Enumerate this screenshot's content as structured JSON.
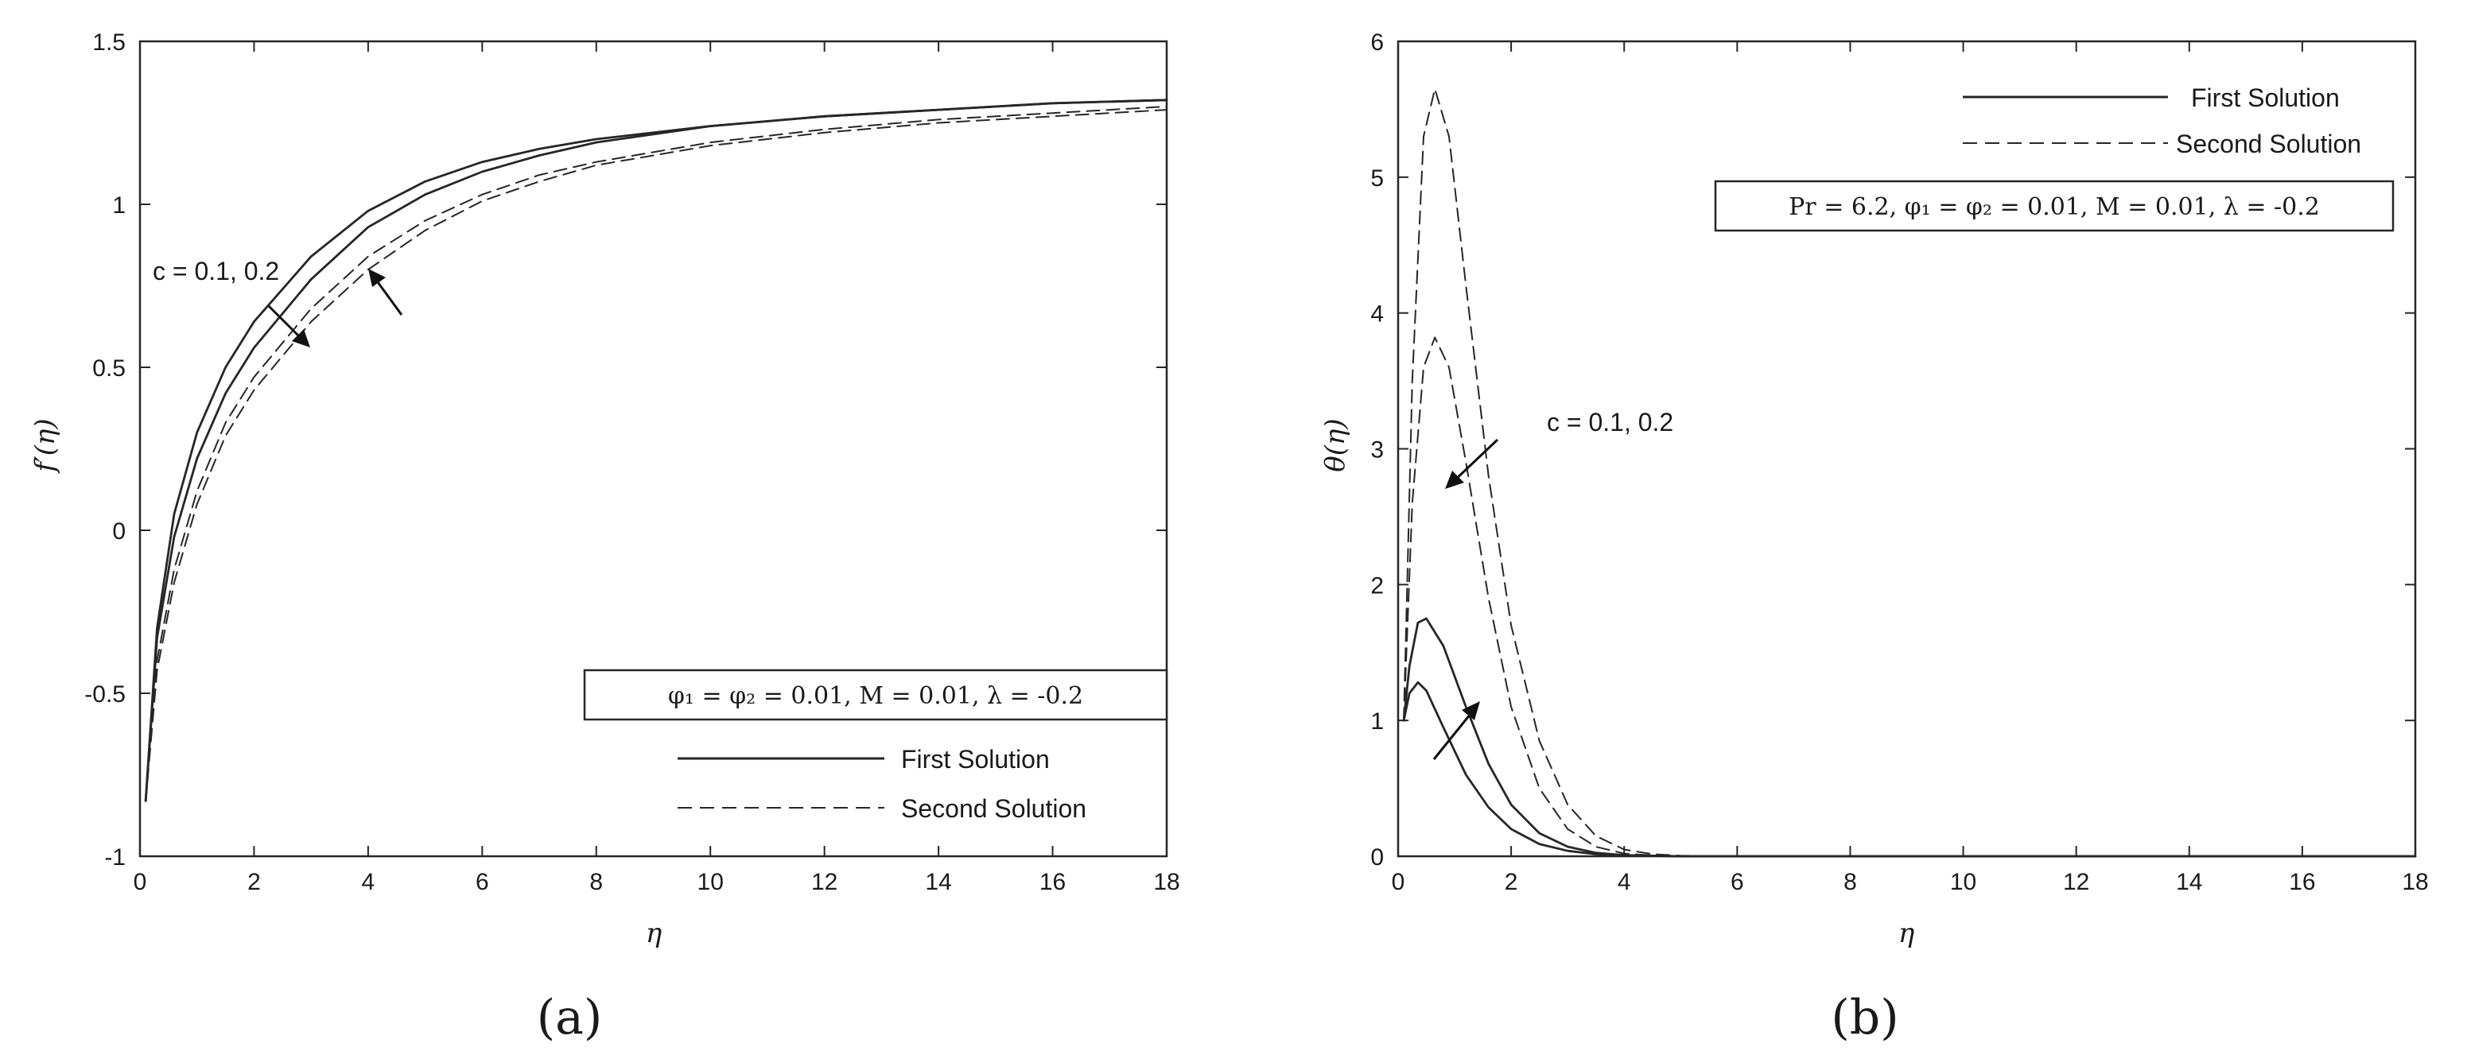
{
  "chart_data": [
    {
      "type": "line",
      "panel_label": "(a)",
      "xlabel": "η",
      "ylabel": "f′(η)",
      "xlim": [
        0,
        18
      ],
      "ylim": [
        -1,
        1.5
      ],
      "xticks": [
        0,
        2,
        4,
        6,
        8,
        10,
        12,
        14,
        16,
        18
      ],
      "yticks": [
        -1,
        -0.5,
        0,
        0.5,
        1,
        1.5
      ],
      "xtick_labels": [
        "0",
        "2",
        "4",
        "6",
        "8",
        "10",
        "12",
        "14",
        "16",
        "18"
      ],
      "ytick_labels": [
        "-1",
        "-0.5",
        "0",
        "0.5",
        "1",
        "1.5"
      ],
      "grid": false,
      "legend": {
        "position": "bottom-right",
        "entries": [
          {
            "label": "First Solution",
            "style": "solid"
          },
          {
            "label": "Second Solution",
            "style": "dashed"
          }
        ]
      },
      "parameter_box": "φ₁ = φ₂ = 0.01, M = 0.01, λ = -0.2",
      "annotation": "c = 0.1, 0.2",
      "series": [
        {
          "style": "solid",
          "c": 0.1,
          "x": [
            0.1,
            0.3,
            0.6,
            1,
            1.5,
            2,
            3,
            4,
            5,
            6,
            7,
            8,
            10,
            12,
            14,
            16,
            18
          ],
          "y": [
            -0.83,
            -0.3,
            0.05,
            0.3,
            0.5,
            0.64,
            0.84,
            0.98,
            1.07,
            1.13,
            1.17,
            1.2,
            1.24,
            1.27,
            1.29,
            1.31,
            1.32
          ]
        },
        {
          "style": "solid",
          "c": 0.2,
          "x": [
            0.1,
            0.3,
            0.6,
            1,
            1.5,
            2,
            3,
            4,
            5,
            6,
            7,
            8,
            10,
            12,
            14,
            16,
            18
          ],
          "y": [
            -0.83,
            -0.33,
            -0.02,
            0.22,
            0.42,
            0.56,
            0.77,
            0.93,
            1.03,
            1.1,
            1.15,
            1.19,
            1.24,
            1.27,
            1.29,
            1.31,
            1.32
          ]
        },
        {
          "style": "dashed",
          "c": 0.1,
          "x": [
            0.1,
            0.3,
            0.6,
            1,
            1.5,
            2,
            3,
            4,
            5,
            6,
            7,
            8,
            10,
            12,
            14,
            16,
            18
          ],
          "y": [
            -0.83,
            -0.4,
            -0.12,
            0.12,
            0.33,
            0.47,
            0.68,
            0.84,
            0.95,
            1.03,
            1.09,
            1.13,
            1.19,
            1.23,
            1.26,
            1.28,
            1.3
          ]
        },
        {
          "style": "dashed",
          "c": 0.2,
          "x": [
            0.1,
            0.3,
            0.6,
            1,
            1.5,
            2,
            3,
            4,
            5,
            6,
            7,
            8,
            10,
            12,
            14,
            16,
            18
          ],
          "y": [
            -0.83,
            -0.43,
            -0.16,
            0.08,
            0.29,
            0.43,
            0.64,
            0.8,
            0.92,
            1.01,
            1.07,
            1.12,
            1.18,
            1.22,
            1.25,
            1.27,
            1.29
          ]
        }
      ]
    },
    {
      "type": "line",
      "panel_label": "(b)",
      "xlabel": "η",
      "ylabel": "θ(η)",
      "xlim": [
        0,
        18
      ],
      "ylim": [
        0,
        6
      ],
      "xticks": [
        0,
        2,
        4,
        6,
        8,
        10,
        12,
        14,
        16,
        18
      ],
      "yticks": [
        0,
        1,
        2,
        3,
        4,
        5,
        6
      ],
      "xtick_labels": [
        "0",
        "2",
        "4",
        "6",
        "8",
        "10",
        "12",
        "14",
        "16",
        "18"
      ],
      "ytick_labels": [
        "0",
        "1",
        "2",
        "3",
        "4",
        "5",
        "6"
      ],
      "grid": false,
      "legend": {
        "position": "top-right",
        "entries": [
          {
            "label": "First Solution",
            "style": "solid"
          },
          {
            "label": "Second Solution",
            "style": "dashed"
          }
        ]
      },
      "parameter_box": "Pr = 6.2, φ₁ = φ₂ = 0.01, M = 0.01, λ = -0.2",
      "annotation": "c = 0.1, 0.2",
      "series": [
        {
          "style": "solid",
          "c": 0.1,
          "x": [
            0.1,
            0.2,
            0.35,
            0.5,
            0.8,
            1.2,
            1.6,
            2,
            2.5,
            3,
            3.5,
            4,
            5,
            6,
            18
          ],
          "y": [
            1,
            1.2,
            1.28,
            1.22,
            0.95,
            0.6,
            0.36,
            0.2,
            0.09,
            0.04,
            0.015,
            0.005,
            0,
            0,
            0
          ]
        },
        {
          "style": "solid",
          "c": 0.2,
          "x": [
            0.1,
            0.2,
            0.35,
            0.5,
            0.8,
            1.2,
            1.6,
            2,
            2.5,
            3,
            3.5,
            4,
            5,
            6,
            18
          ],
          "y": [
            1,
            1.4,
            1.72,
            1.75,
            1.55,
            1.1,
            0.68,
            0.38,
            0.17,
            0.07,
            0.025,
            0.008,
            0,
            0,
            0
          ]
        },
        {
          "style": "dashed",
          "c": 0.1,
          "x": [
            0.1,
            0.25,
            0.45,
            0.65,
            0.9,
            1.2,
            1.6,
            2,
            2.5,
            3,
            3.5,
            4,
            4.5,
            5,
            6,
            18
          ],
          "y": [
            1,
            2.6,
            3.6,
            3.82,
            3.6,
            2.9,
            1.9,
            1.1,
            0.5,
            0.2,
            0.07,
            0.02,
            0.006,
            0,
            0,
            0
          ]
        },
        {
          "style": "dashed",
          "c": 0.2,
          "x": [
            0.1,
            0.25,
            0.45,
            0.65,
            0.9,
            1.2,
            1.6,
            2,
            2.5,
            3,
            3.5,
            4,
            4.5,
            5,
            6,
            18
          ],
          "y": [
            1,
            3.5,
            5.3,
            5.65,
            5.3,
            4.2,
            2.8,
            1.7,
            0.85,
            0.38,
            0.15,
            0.05,
            0.015,
            0.004,
            0,
            0
          ]
        }
      ]
    }
  ]
}
